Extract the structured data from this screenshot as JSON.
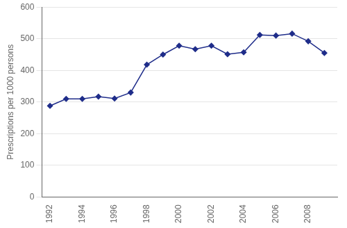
{
  "chart_data": {
    "type": "line",
    "x": [
      1992,
      1993,
      1994,
      1995,
      1996,
      1997,
      1998,
      1999,
      2000,
      2001,
      2002,
      2003,
      2004,
      2005,
      2006,
      2007,
      2008,
      2009
    ],
    "values": [
      288,
      310,
      310,
      317,
      311,
      330,
      418,
      450,
      478,
      467,
      478,
      451,
      457,
      512,
      510,
      516,
      492,
      455
    ],
    "color": "#1F2D8A",
    "marker": "diamond",
    "ylabel": "Prescriptions per 1000 persons",
    "xlim": [
      1991.5,
      2009.8
    ],
    "xticks": [
      1992,
      1994,
      1996,
      1998,
      2000,
      2002,
      2004,
      2006,
      2008
    ],
    "ylim": [
      0,
      600
    ],
    "yticks": [
      0,
      100,
      200,
      300,
      400,
      500,
      600
    ],
    "grid": "y"
  }
}
